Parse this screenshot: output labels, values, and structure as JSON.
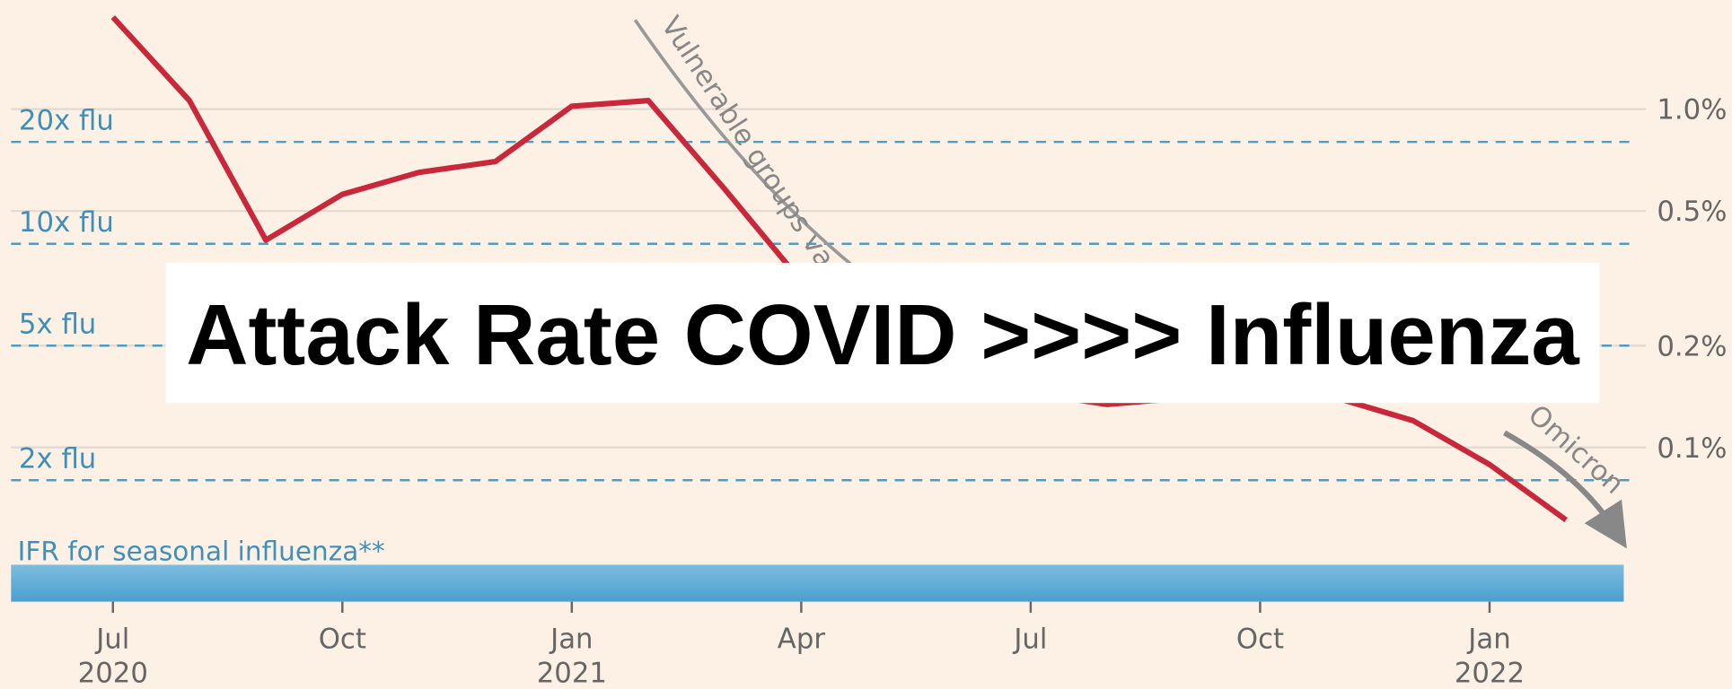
{
  "chart_data": {
    "type": "line",
    "title": "Attack Rate COVID >>>> Influenza",
    "x": [
      "2020-07",
      "2020-08",
      "2020-09",
      "2020-10",
      "2020-11",
      "2020-12",
      "2021-01",
      "2021-02",
      "2021-03",
      "2021-04",
      "2021-05",
      "2021-06",
      "2021-07",
      "2021-08",
      "2021-09",
      "2021-10",
      "2021-11",
      "2021-12",
      "2022-01",
      "2022-02"
    ],
    "series": [
      {
        "color": "#c9283b",
        "values": [
          1.87,
          1.06,
          0.41,
          0.56,
          0.65,
          0.7,
          1.02,
          1.06,
          0.58,
          0.31,
          0.22,
          0.175,
          0.145,
          0.134,
          0.14,
          0.15,
          0.14,
          0.12,
          0.089,
          0.061
        ]
      }
    ],
    "xlim": [
      "2020-06",
      "2022-03"
    ],
    "xticks": [
      {
        "value": "2020-07",
        "label": "Jul",
        "year": "2020"
      },
      {
        "value": "2020-10",
        "label": "Oct"
      },
      {
        "value": "2021-01",
        "label": "Jan",
        "year": "2021"
      },
      {
        "value": "2021-04",
        "label": "Apr"
      },
      {
        "value": "2021-07",
        "label": "Jul"
      },
      {
        "value": "2021-10",
        "label": "Oct"
      },
      {
        "value": "2022-01",
        "label": "Jan",
        "year": "2022"
      }
    ],
    "ylim": [
      0.035,
      2.1
    ],
    "log_y": true,
    "yticks": [
      {
        "value": 1.0,
        "label": "1.0%"
      },
      {
        "value": 0.5,
        "label": "0.5%"
      },
      {
        "value": 0.2,
        "label": "0.2%"
      },
      {
        "value": 0.1,
        "label": "0.1%"
      }
    ],
    "grid": true,
    "reference_lines": [
      {
        "label": "20x flu",
        "value": 0.8
      },
      {
        "label": "10x flu",
        "value": 0.4
      },
      {
        "label": "5x flu",
        "value": 0.2
      },
      {
        "label": "2x flu",
        "value": 0.08
      }
    ],
    "flu_band": {
      "label": "IFR for seasonal influenza**",
      "upper": 0.045
    },
    "annotations": [
      "Vulnerable groups vaccinated",
      "Omicron"
    ]
  }
}
